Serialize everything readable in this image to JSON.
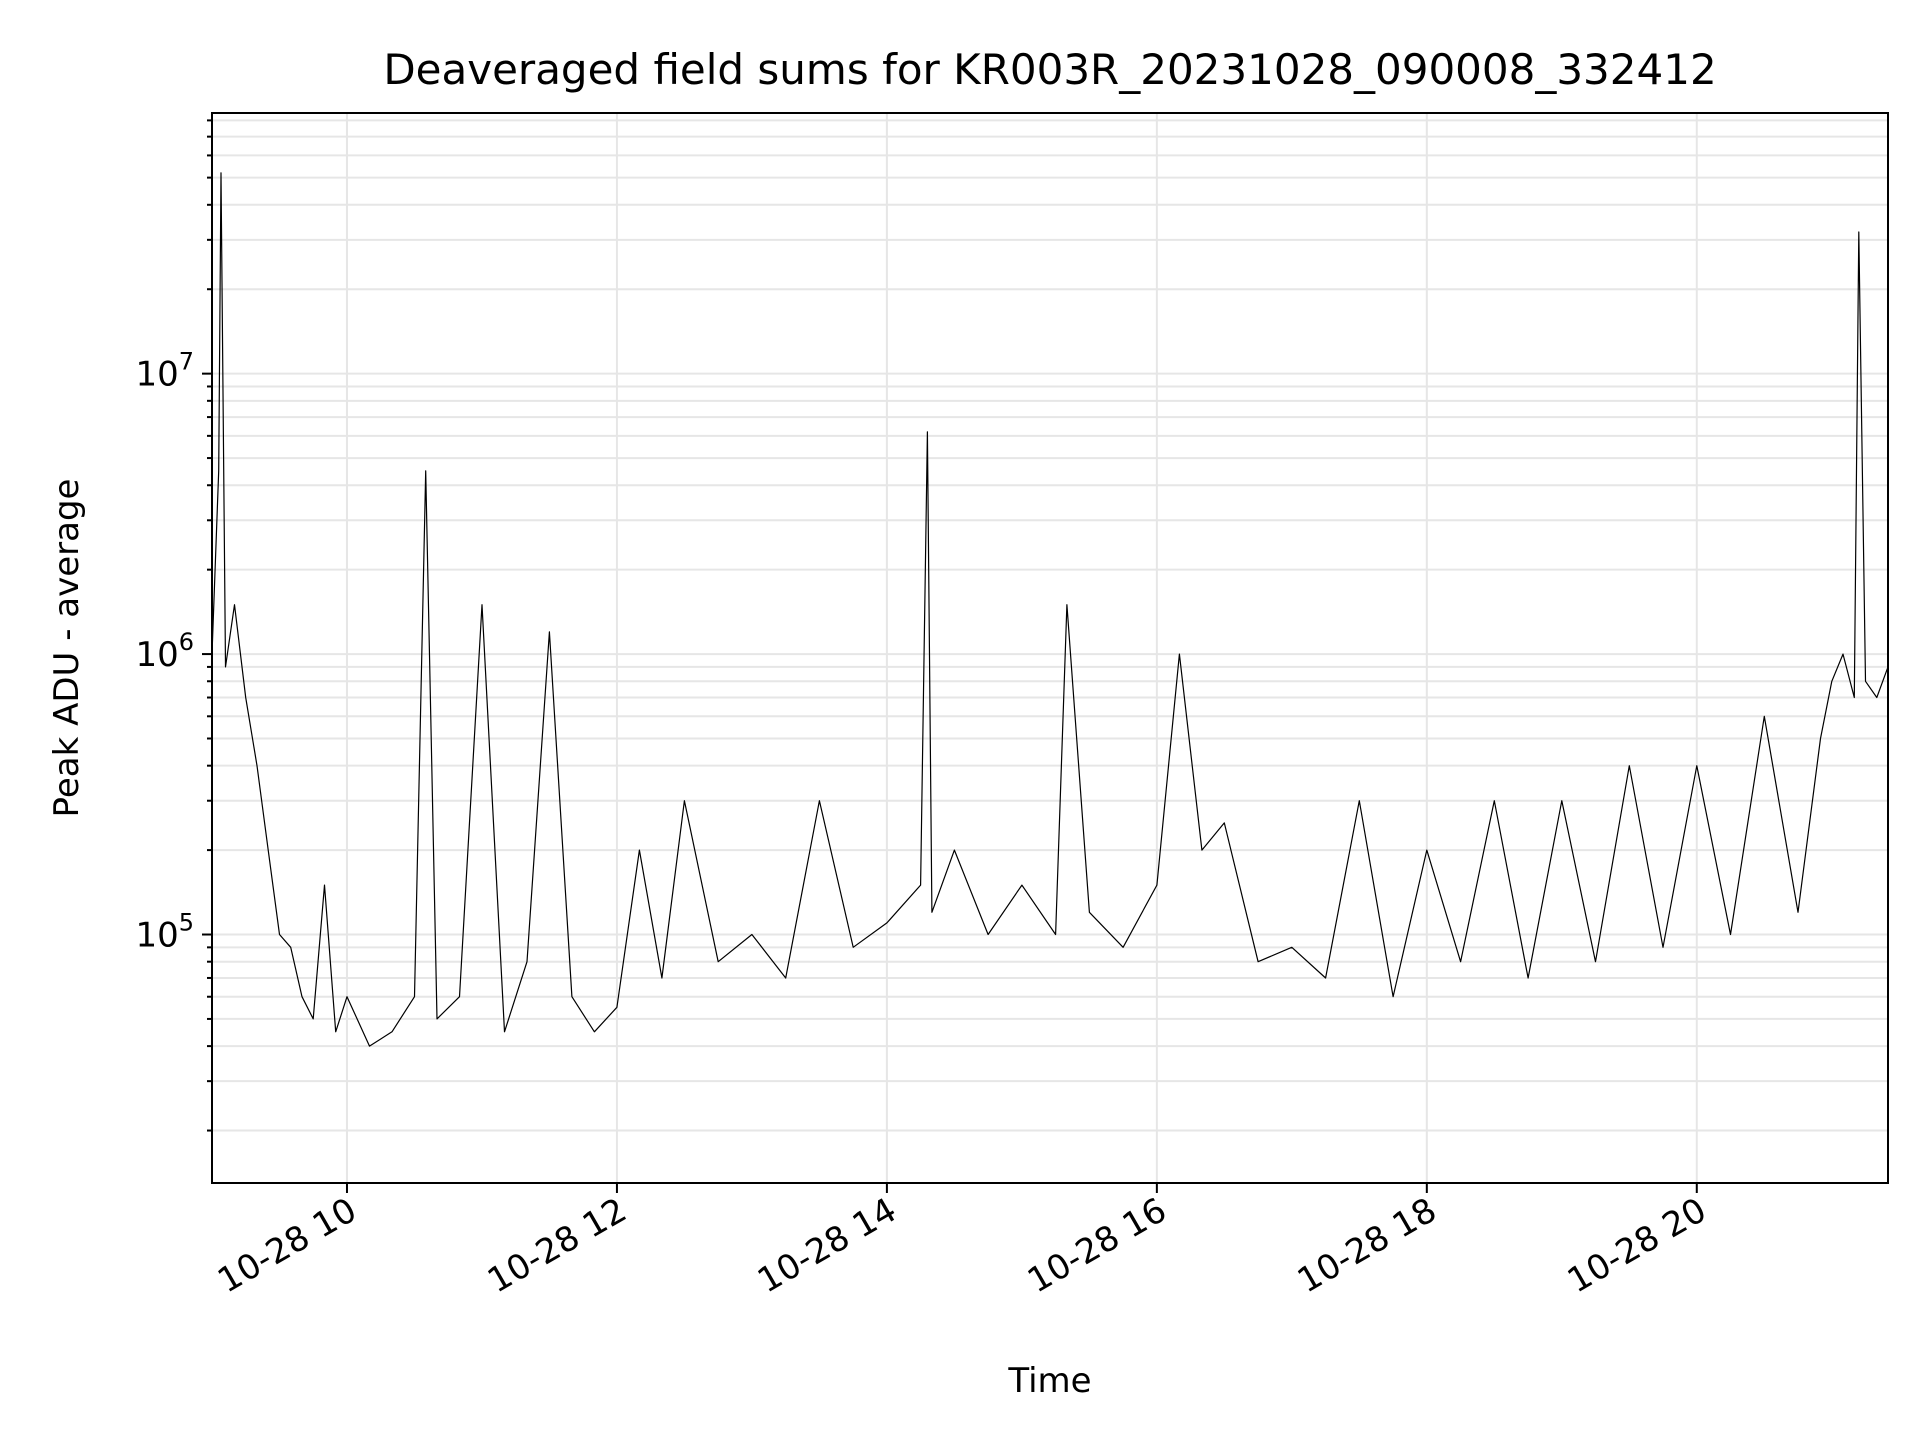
{
  "chart_data": {
    "type": "line",
    "title": "Deaveraged field sums for KR003R_20231028_090008_332412",
    "xlabel": "Time",
    "ylabel": "Peak ADU - average",
    "xscale": "time",
    "yscale": "log",
    "xlim": [
      "2023-10-28 09:00",
      "2023-10-28 21:25"
    ],
    "ylim": [
      13000,
      85000000
    ],
    "grid": true,
    "grid_minor_y": true,
    "line_color": "#000000",
    "x_ticks": [
      {
        "value": "2023-10-28 10:00",
        "label": "10-28 10"
      },
      {
        "value": "2023-10-28 12:00",
        "label": "10-28 12"
      },
      {
        "value": "2023-10-28 14:00",
        "label": "10-28 14"
      },
      {
        "value": "2023-10-28 16:00",
        "label": "10-28 16"
      },
      {
        "value": "2023-10-28 18:00",
        "label": "10-28 18"
      },
      {
        "value": "2023-10-28 20:00",
        "label": "10-28 20"
      }
    ],
    "y_ticks": [
      {
        "value": 100000,
        "base": "10",
        "exp": "5"
      },
      {
        "value": 1000000,
        "base": "10",
        "exp": "6"
      },
      {
        "value": 10000000,
        "base": "10",
        "exp": "7"
      }
    ],
    "series": [
      {
        "x": [
          "2023-10-28 09:00",
          "2023-10-28 09:03",
          "2023-10-28 09:04",
          "2023-10-28 09:06",
          "2023-10-28 09:10",
          "2023-10-28 09:15",
          "2023-10-28 09:20",
          "2023-10-28 09:25",
          "2023-10-28 09:30",
          "2023-10-28 09:35",
          "2023-10-28 09:40",
          "2023-10-28 09:45",
          "2023-10-28 09:50",
          "2023-10-28 09:55",
          "2023-10-28 10:00",
          "2023-10-28 10:10",
          "2023-10-28 10:20",
          "2023-10-28 10:30",
          "2023-10-28 10:35",
          "2023-10-28 10:40",
          "2023-10-28 10:50",
          "2023-10-28 11:00",
          "2023-10-28 11:10",
          "2023-10-28 11:20",
          "2023-10-28 11:30",
          "2023-10-28 11:40",
          "2023-10-28 11:50",
          "2023-10-28 12:00",
          "2023-10-28 12:10",
          "2023-10-28 12:20",
          "2023-10-28 12:30",
          "2023-10-28 12:45",
          "2023-10-28 13:00",
          "2023-10-28 13:15",
          "2023-10-28 13:30",
          "2023-10-28 13:45",
          "2023-10-28 14:00",
          "2023-10-28 14:15",
          "2023-10-28 14:18",
          "2023-10-28 14:20",
          "2023-10-28 14:30",
          "2023-10-28 14:45",
          "2023-10-28 15:00",
          "2023-10-28 15:15",
          "2023-10-28 15:20",
          "2023-10-28 15:30",
          "2023-10-28 15:45",
          "2023-10-28 16:00",
          "2023-10-28 16:10",
          "2023-10-28 16:20",
          "2023-10-28 16:30",
          "2023-10-28 16:45",
          "2023-10-28 17:00",
          "2023-10-28 17:15",
          "2023-10-28 17:30",
          "2023-10-28 17:45",
          "2023-10-28 18:00",
          "2023-10-28 18:15",
          "2023-10-28 18:30",
          "2023-10-28 18:45",
          "2023-10-28 19:00",
          "2023-10-28 19:15",
          "2023-10-28 19:30",
          "2023-10-28 19:45",
          "2023-10-28 20:00",
          "2023-10-28 20:15",
          "2023-10-28 20:30",
          "2023-10-28 20:45",
          "2023-10-28 20:55",
          "2023-10-28 21:00",
          "2023-10-28 21:05",
          "2023-10-28 21:10",
          "2023-10-28 21:12",
          "2023-10-28 21:15",
          "2023-10-28 21:20",
          "2023-10-28 21:25"
        ],
        "y": [
          1000000,
          4500000,
          52000000,
          900000,
          1500000,
          700000,
          400000,
          200000,
          100000,
          90000,
          60000,
          50000,
          150000,
          45000,
          60000,
          40000,
          45000,
          60000,
          4500000,
          50000,
          60000,
          1500000,
          45000,
          80000,
          1200000,
          60000,
          45000,
          55000,
          200000,
          70000,
          300000,
          80000,
          100000,
          70000,
          300000,
          90000,
          110000,
          150000,
          6200000,
          120000,
          200000,
          100000,
          150000,
          100000,
          1500000,
          120000,
          90000,
          150000,
          1000000,
          200000,
          250000,
          80000,
          90000,
          70000,
          300000,
          60000,
          200000,
          80000,
          300000,
          70000,
          300000,
          80000,
          400000,
          90000,
          400000,
          100000,
          600000,
          120000,
          500000,
          800000,
          1000000,
          700000,
          32000000,
          800000,
          700000,
          900000
        ]
      }
    ]
  }
}
